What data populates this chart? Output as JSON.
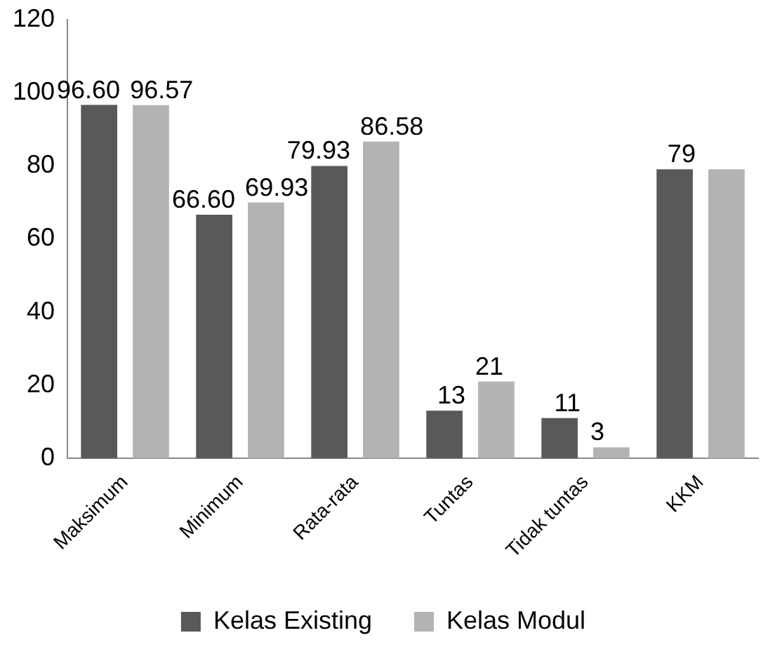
{
  "chart_data": {
    "type": "bar",
    "categories": [
      "Maksimum",
      "Minimum",
      "Rata-rata",
      "Tuntas",
      "Tidak tuntas",
      "KKM"
    ],
    "series": [
      {
        "name": "Kelas Existing",
        "color": "#595959",
        "values": [
          96.6,
          66.6,
          79.93,
          13,
          11,
          79
        ],
        "value_labels": [
          "96.60",
          "66.60",
          "79.93",
          "13",
          "11",
          "79"
        ]
      },
      {
        "name": "Kelas Modul",
        "color": "#b3b3b3",
        "values": [
          96.57,
          69.93,
          86.58,
          21,
          3,
          79
        ],
        "value_labels": [
          "96.57",
          "69.93",
          "86.58",
          "21",
          "3",
          null
        ]
      }
    ],
    "ylim": [
      0,
      120
    ],
    "yticks": [
      0,
      20,
      40,
      60,
      80,
      100,
      120
    ],
    "grid": false,
    "legend": "bottom"
  }
}
